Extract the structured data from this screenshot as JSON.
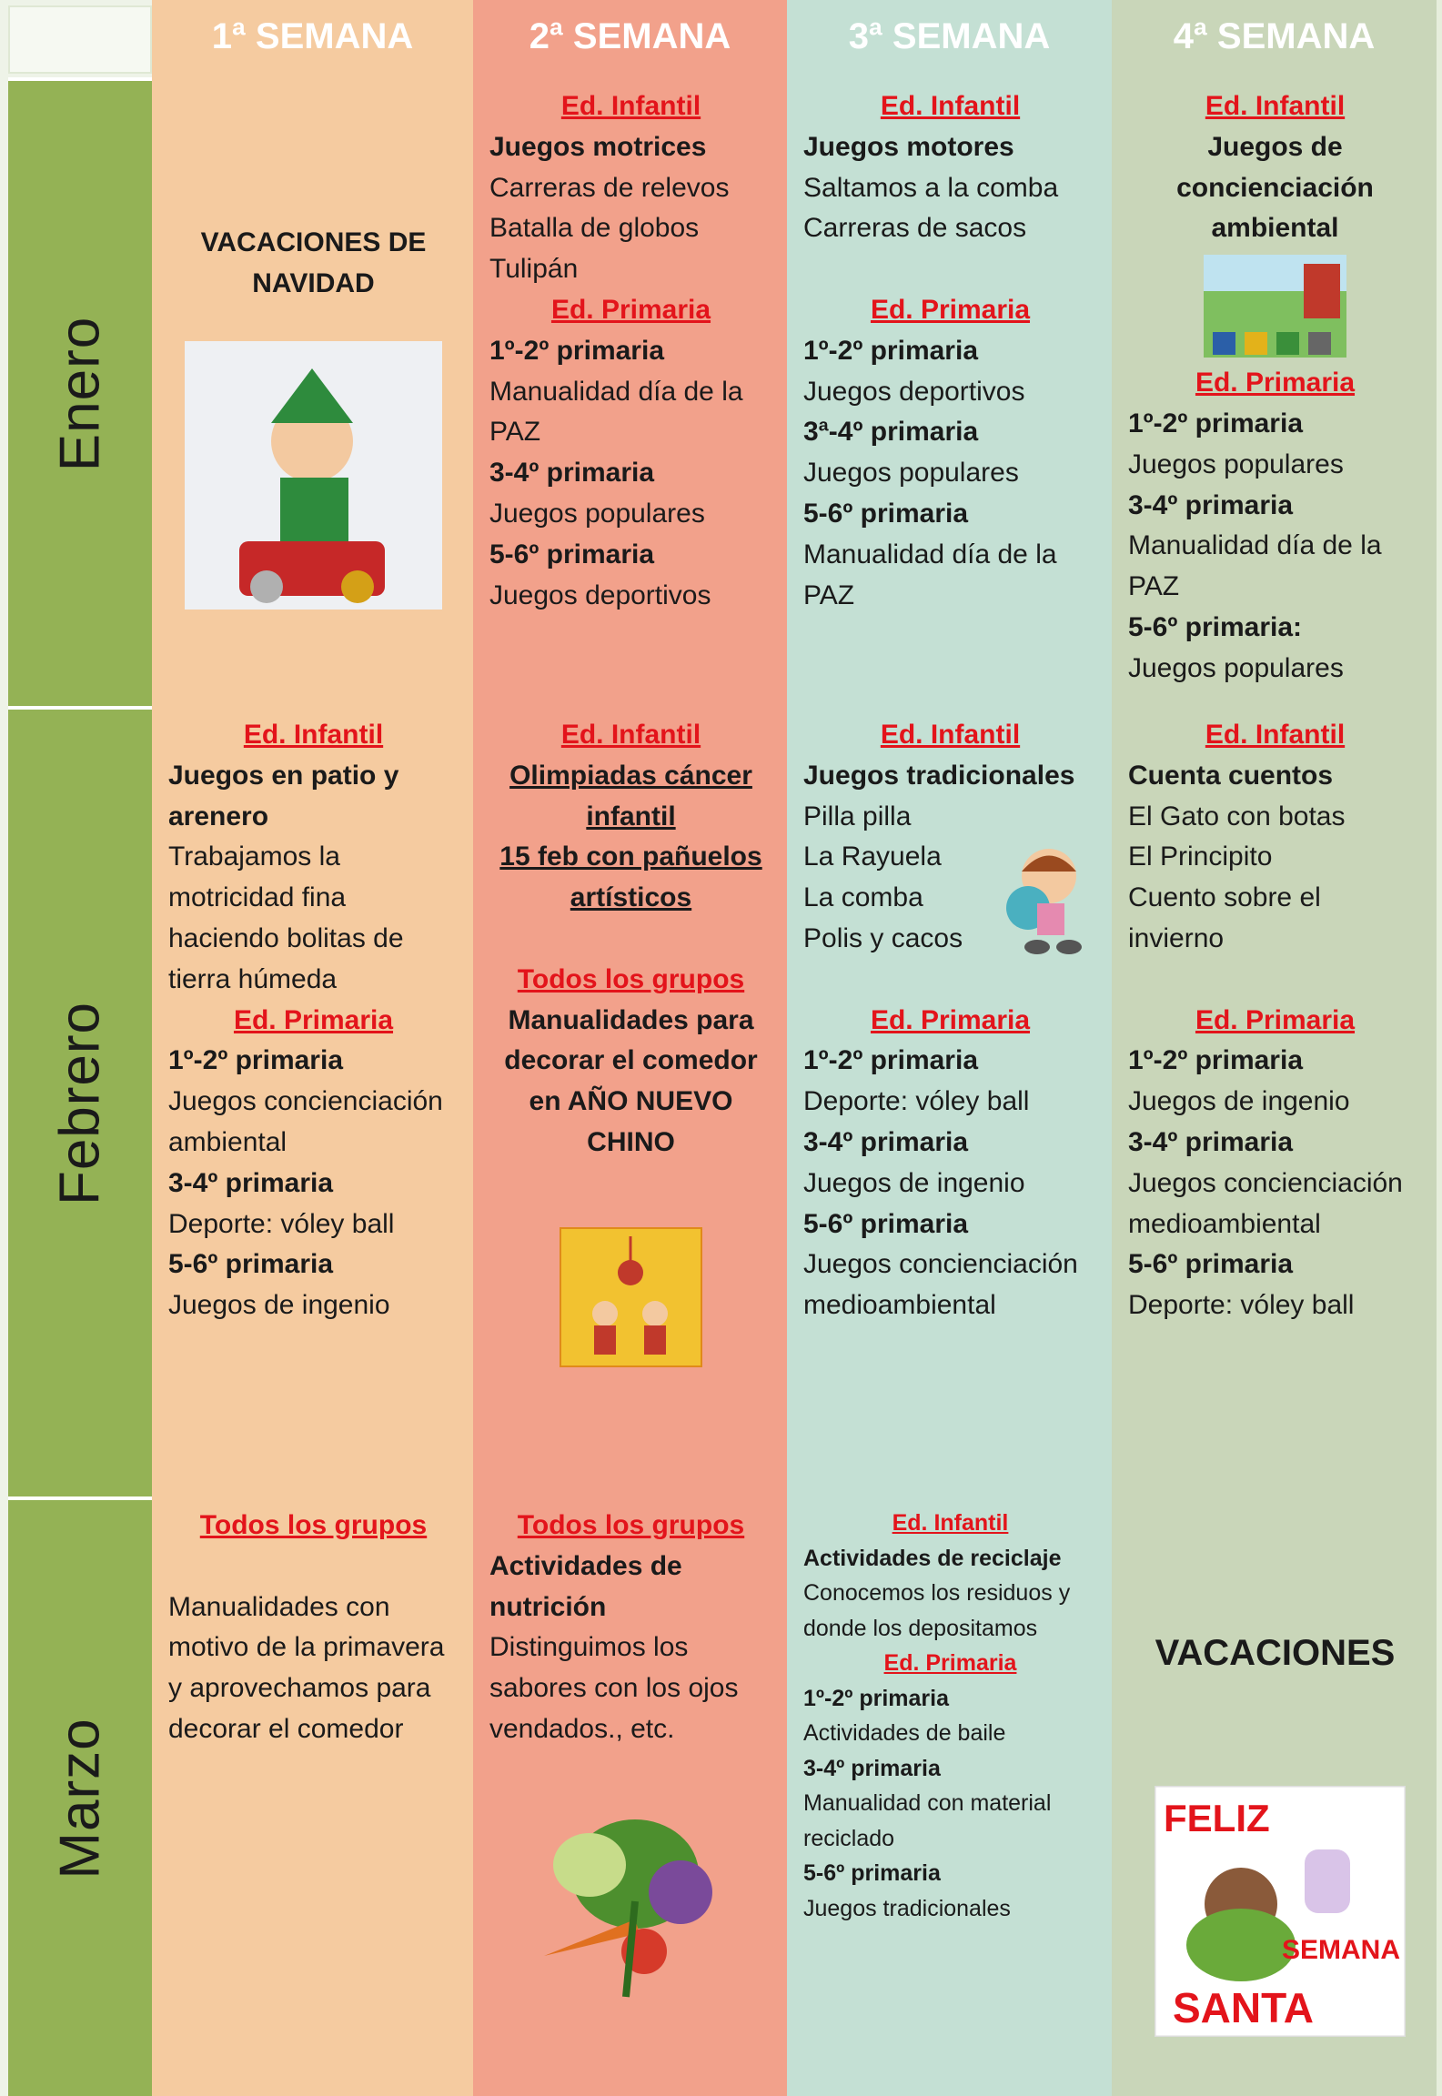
{
  "headers": [
    "1ª SEMANA",
    "2ª SEMANA",
    "3ª SEMANA",
    "4ª SEMANA"
  ],
  "rows": [
    {
      "month": "Enero",
      "cells": [
        {
          "items": [
            {
              "title": "VACACIONES DE NAVIDAD"
            }
          ]
        },
        {
          "items": [
            {
              "heading": "Ed. Infantil"
            },
            {
              "bold": "Juegos motrices"
            },
            {
              "text": "Carreras de relevos"
            },
            {
              "text": "Batalla de globos"
            },
            {
              "text": "Tulipán"
            },
            {
              "heading": "Ed. Primaria"
            },
            {
              "bold": "1º-2º primaria"
            },
            {
              "text": "Manualidad día de la PAZ"
            },
            {
              "bold": "3-4º primaria"
            },
            {
              "text": "Juegos populares"
            },
            {
              "bold": "5-6º primaria"
            },
            {
              "text": "Juegos deportivos"
            }
          ]
        },
        {
          "items": [
            {
              "heading": "Ed. Infantil"
            },
            {
              "bold": "Juegos motores"
            },
            {
              "text": "Saltamos a la comba"
            },
            {
              "text": "Carreras de sacos"
            },
            {
              "heading": "Ed. Primaria"
            },
            {
              "bold": "1º-2º primaria"
            },
            {
              "text": "Juegos deportivos"
            },
            {
              "bold": "3ª-4º primaria"
            },
            {
              "text": "Juegos populares"
            },
            {
              "bold": "5-6º primaria"
            },
            {
              "text": "Manualidad día de la PAZ"
            }
          ]
        },
        {
          "items": [
            {
              "heading": "Ed. Infantil"
            },
            {
              "title": "Juegos de concienciación ambiental"
            },
            {
              "heading": "Ed. Primaria"
            },
            {
              "bold": "1º-2º primaria"
            },
            {
              "text": "Juegos populares"
            },
            {
              "bold": "3-4º primaria"
            },
            {
              "text": "Manualidad día de la PAZ"
            },
            {
              "bold": "5-6º primaria:"
            },
            {
              "text": "Juegos populares"
            }
          ]
        }
      ]
    },
    {
      "month": "Febrero",
      "cells": [
        {
          "items": [
            {
              "heading": "Ed. Infantil"
            },
            {
              "bold": "Juegos en patio y arenero"
            },
            {
              "text": "Trabajamos la motricidad fina haciendo bolitas de tierra húmeda"
            },
            {
              "heading": "Ed. Primaria"
            },
            {
              "bold": "1º-2º primaria"
            },
            {
              "text": "Juegos concienciación ambiental"
            },
            {
              "bold": "3-4º primaria"
            },
            {
              "text": "Deporte: vóley ball"
            },
            {
              "bold": "5-6º primaria"
            },
            {
              "text": "Juegos de ingenio"
            }
          ]
        },
        {
          "items": [
            {
              "heading": "Ed. Infantil"
            },
            {
              "underline": "Olimpiadas cáncer infantil"
            },
            {
              "underline": "15 feb con pañuelos artísticos"
            },
            {
              "heading": "Todos los grupos"
            },
            {
              "title": "Manualidades para decorar el comedor en AÑO NUEVO CHINO"
            }
          ]
        },
        {
          "items": [
            {
              "heading": "Ed. Infantil"
            },
            {
              "bold": "Juegos tradicionales"
            },
            {
              "text": "Pilla pilla"
            },
            {
              "text": "La Rayuela"
            },
            {
              "text": "La comba"
            },
            {
              "text": "Polis y cacos"
            },
            {
              "heading": "Ed. Primaria"
            },
            {
              "bold": "1º-2º primaria"
            },
            {
              "text": "Deporte: vóley ball"
            },
            {
              "bold": "3-4º primaria"
            },
            {
              "text": "Juegos de ingenio"
            },
            {
              "bold": "5-6º primaria"
            },
            {
              "text": "Juegos concienciación medioambiental"
            }
          ]
        },
        {
          "items": [
            {
              "heading": "Ed. Infantil"
            },
            {
              "bold": "Cuenta cuentos"
            },
            {
              "text": "El Gato con botas"
            },
            {
              "text": "El Principito"
            },
            {
              "text": "Cuento sobre el invierno"
            },
            {
              "heading": "Ed. Primaria"
            },
            {
              "bold": "1º-2º primaria"
            },
            {
              "text": "Juegos de ingenio"
            },
            {
              "bold": "3-4º primaria"
            },
            {
              "text": "Juegos concienciación medioambiental"
            },
            {
              "bold": "5-6º primaria"
            },
            {
              "text": "Deporte: vóley ball"
            }
          ]
        }
      ]
    },
    {
      "month": "Marzo",
      "cells": [
        {
          "items": [
            {
              "heading": "Todos los grupos"
            },
            {
              "text": "Manualidades con motivo de la primavera y aprovechamos para decorar el comedor"
            }
          ]
        },
        {
          "items": [
            {
              "heading": "Todos los grupos"
            },
            {
              "bold": "Actividades de nutrición"
            },
            {
              "text": "Distinguimos los sabores con los ojos vendados., etc."
            }
          ]
        },
        {
          "items": [
            {
              "heading": "Ed. Infantil"
            },
            {
              "bold": "Actividades de reciclaje"
            },
            {
              "text": "Conocemos los residuos y donde los depositamos"
            },
            {
              "heading": "Ed. Primaria"
            },
            {
              "bold": "1º-2º primaria"
            },
            {
              "text": "Actividades de baile"
            },
            {
              "bold": "3-4º primaria"
            },
            {
              "text": "Manualidad con material reciclado"
            },
            {
              "bold": "5-6º primaria"
            },
            {
              "text": "Juegos tradicionales"
            }
          ]
        },
        {
          "items": [
            {
              "title": "VACACIONES"
            }
          ]
        }
      ]
    }
  ],
  "santa_image": [
    "FELIZ",
    "SEMANA",
    "SANTA"
  ]
}
